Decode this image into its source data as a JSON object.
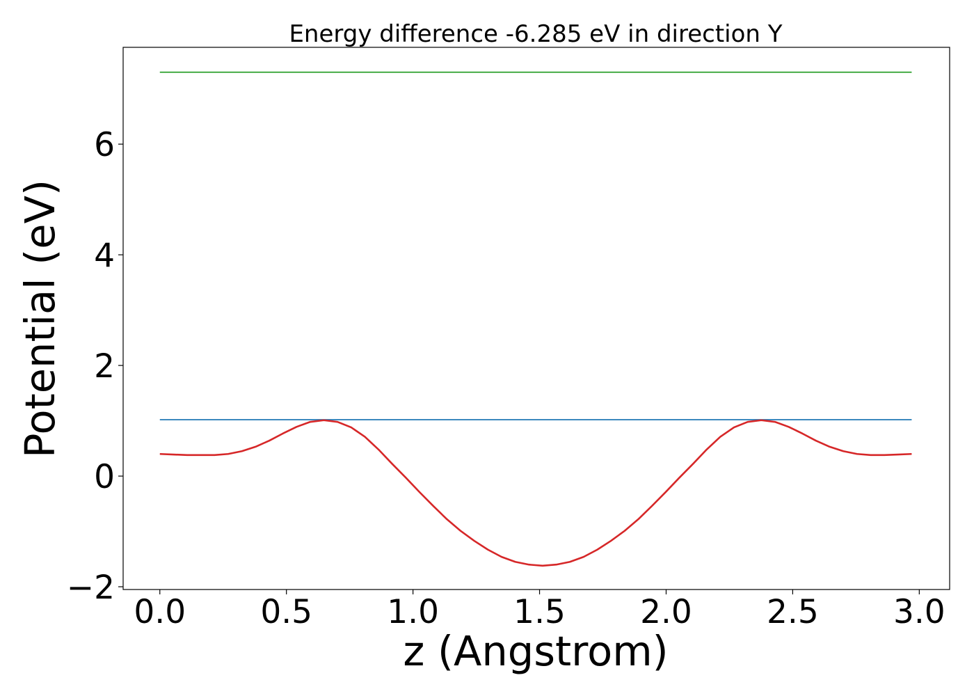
{
  "chart_data": {
    "type": "line",
    "title": "Energy difference -6.285 eV in direction Y",
    "xlabel": "z (Angstrom)",
    "ylabel": "Potential (eV)",
    "xlim": [
      -0.145,
      3.12
    ],
    "ylim": [
      -2.05,
      7.75
    ],
    "xticks": [
      0.0,
      0.5,
      1.0,
      1.5,
      2.0,
      2.5,
      3.0
    ],
    "xtick_labels": [
      "0.0",
      "0.5",
      "1.0",
      "1.5",
      "2.0",
      "2.5",
      "3.0"
    ],
    "yticks": [
      -2,
      0,
      2,
      4,
      6
    ],
    "ytick_labels": [
      "−2",
      "0",
      "2",
      "4",
      "6"
    ],
    "grid": false,
    "legend": false,
    "series": [
      {
        "color": "#2ca02c",
        "x": [
          0.0,
          2.97
        ],
        "y": [
          7.3,
          7.3
        ]
      },
      {
        "color": "#1f77b4",
        "x": [
          0.0,
          2.97
        ],
        "y": [
          1.02,
          1.02
        ]
      },
      {
        "color": "#d62728",
        "x": [
          0.0,
          0.054,
          0.108,
          0.162,
          0.216,
          0.27,
          0.324,
          0.378,
          0.432,
          0.486,
          0.54,
          0.594,
          0.648,
          0.702,
          0.756,
          0.81,
          0.864,
          0.918,
          0.972,
          1.026,
          1.08,
          1.134,
          1.188,
          1.242,
          1.296,
          1.35,
          1.404,
          1.458,
          1.512,
          1.566,
          1.62,
          1.674,
          1.728,
          1.782,
          1.836,
          1.89,
          1.944,
          1.998,
          2.052,
          2.106,
          2.16,
          2.214,
          2.268,
          2.322,
          2.376,
          2.43,
          2.484,
          2.538,
          2.592,
          2.646,
          2.7,
          2.754,
          2.808,
          2.862,
          2.916,
          2.97
        ],
        "y": [
          0.4,
          0.39,
          0.38,
          0.38,
          0.38,
          0.4,
          0.45,
          0.53,
          0.64,
          0.77,
          0.89,
          0.98,
          1.01,
          0.98,
          0.88,
          0.71,
          0.48,
          0.22,
          -0.03,
          -0.29,
          -0.54,
          -0.78,
          -0.99,
          -1.17,
          -1.33,
          -1.46,
          -1.55,
          -1.6,
          -1.62,
          -1.6,
          -1.55,
          -1.46,
          -1.33,
          -1.17,
          -0.99,
          -0.78,
          -0.54,
          -0.29,
          -0.03,
          0.22,
          0.48,
          0.71,
          0.88,
          0.98,
          1.01,
          0.98,
          0.89,
          0.77,
          0.64,
          0.53,
          0.45,
          0.4,
          0.38,
          0.38,
          0.39,
          0.4
        ]
      }
    ]
  }
}
